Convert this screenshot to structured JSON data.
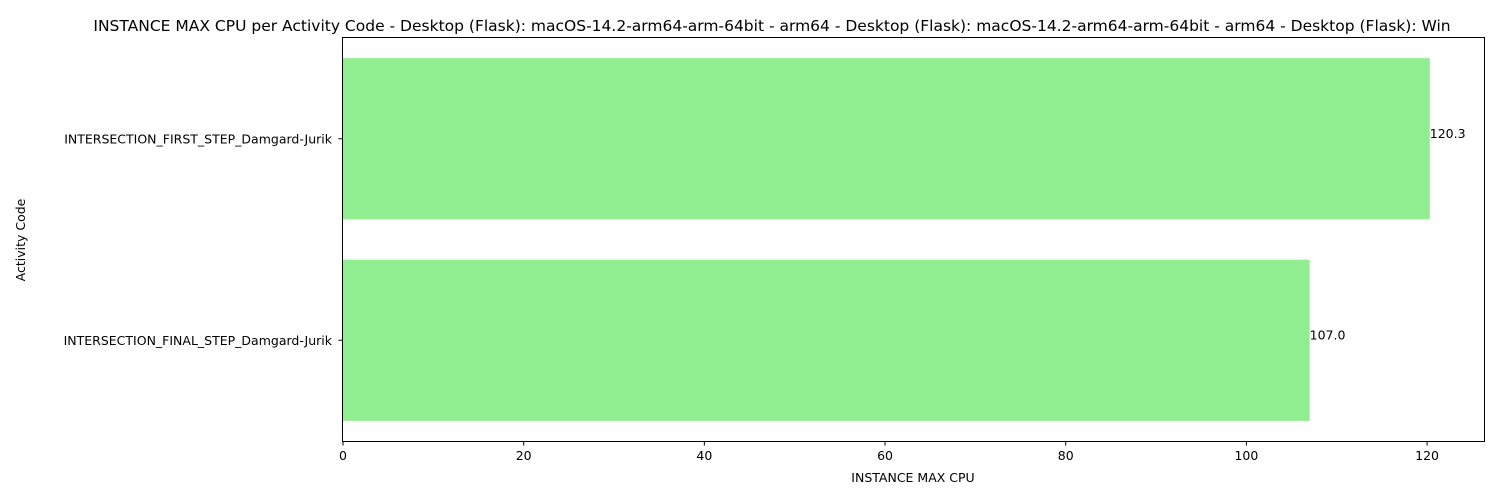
{
  "chart_data": {
    "type": "bar",
    "orientation": "horizontal",
    "title": "INSTANCE MAX CPU per Activity Code - Desktop (Flask): macOS-14.2-arm64-arm-64bit - arm64 - Desktop (Flask): macOS-14.2-arm64-arm-64bit - arm64 - Desktop (Flask): Win",
    "xlabel": "INSTANCE MAX CPU",
    "ylabel": "Activity Code",
    "categories": [
      "INTERSECTION_FIRST_STEP_Damgard-Jurik",
      "INTERSECTION_FINAL_STEP_Damgard-Jurik"
    ],
    "values": [
      120.3,
      107.0
    ],
    "value_labels": [
      "120.3",
      "107.0"
    ],
    "xticks": [
      0,
      20,
      40,
      60,
      80,
      100,
      120
    ],
    "xtick_labels": [
      "0",
      "20",
      "40",
      "60",
      "80",
      "100",
      "120"
    ],
    "xlim": [
      0,
      126.3
    ],
    "bar_color": "#90ee90",
    "grid": false,
    "legend": "none"
  }
}
